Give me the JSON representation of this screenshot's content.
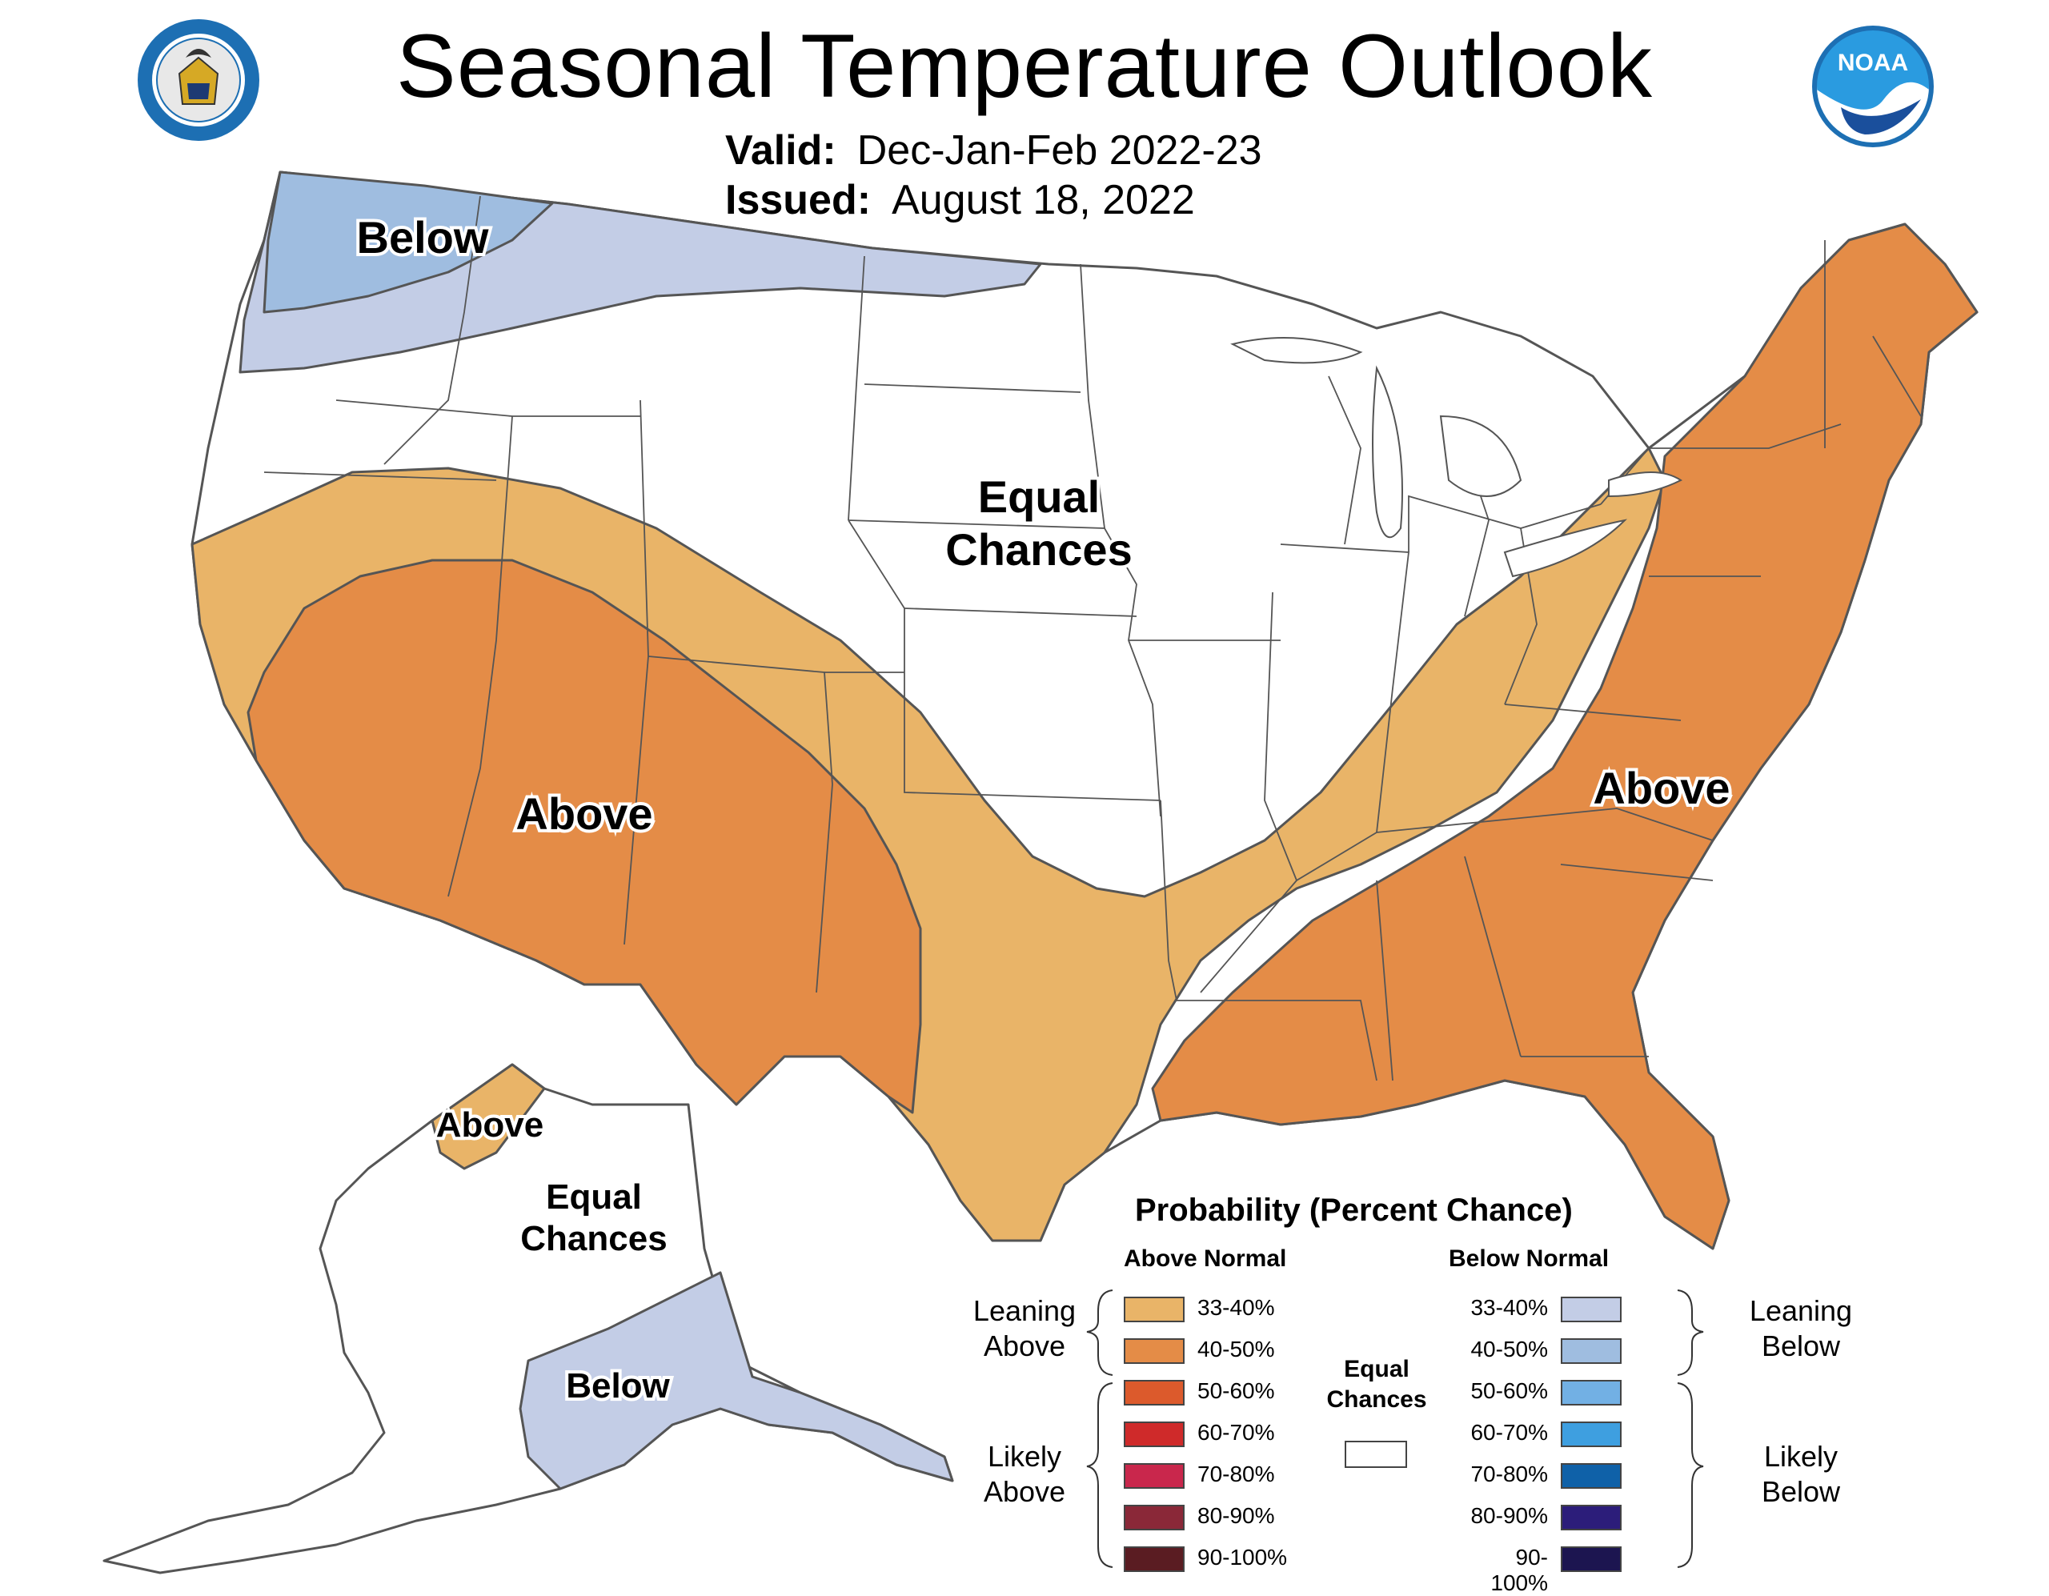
{
  "header": {
    "title": "Seasonal Temperature Outlook",
    "valid_label": "Valid:",
    "valid_value": "Dec-Jan-Feb 2022-23",
    "issued_label": "Issued:",
    "issued_value": "August 18, 2022",
    "doc_seal_icon": "department-of-commerce-seal-icon",
    "noaa_logo_icon": "noaa-logo-icon",
    "noaa_logo_text": "NOAA",
    "doc_seal_text": "DEPARTMENT OF COMMERCE · UNITED STATES OF AMERICA"
  },
  "map": {
    "regions": [
      {
        "label": "Below",
        "category": "below",
        "probability": "40-50%",
        "area": "Pacific Northwest"
      },
      {
        "label": "Equal Chances",
        "category": "equal",
        "area": "Central/North"
      },
      {
        "label": "Above",
        "category": "above",
        "probability": "40-50%",
        "area": "Southwest"
      },
      {
        "label": "Above",
        "category": "above",
        "probability": "40-50%",
        "area": "East/Southeast"
      },
      {
        "label": "Above",
        "category": "above",
        "probability": "33-40%",
        "area": "Northern Alaska"
      },
      {
        "label": "Equal Chances",
        "category": "equal",
        "area": "Alaska interior"
      },
      {
        "label": "Below",
        "category": "below",
        "probability": "33-40%",
        "area": "Southern Alaska"
      }
    ],
    "labels": {
      "pnw_below": "Below",
      "center_equal_1": "Equal",
      "center_equal_2": "Chances",
      "sw_above": "Above",
      "east_above": "Above",
      "ak_above": "Above",
      "ak_equal_1": "Equal",
      "ak_equal_2": "Chances",
      "ak_below": "Below"
    }
  },
  "legend": {
    "title": "Probability (Percent Chance)",
    "above_header": "Above Normal",
    "below_header": "Below Normal",
    "equal_label_1": "Equal",
    "equal_label_2": "Chances",
    "leaning_above_1": "Leaning",
    "leaning_above_2": "Above",
    "likely_above_1": "Likely",
    "likely_above_2": "Above",
    "leaning_below_1": "Leaning",
    "leaning_below_2": "Below",
    "likely_below_1": "Likely",
    "likely_below_2": "Below",
    "above": [
      {
        "range": "33-40%",
        "color": "#e9b468"
      },
      {
        "range": "40-50%",
        "color": "#e48c47"
      },
      {
        "range": "50-60%",
        "color": "#dc5a2c"
      },
      {
        "range": "60-70%",
        "color": "#cf2a2a"
      },
      {
        "range": "70-80%",
        "color": "#c9274c"
      },
      {
        "range": "80-90%",
        "color": "#8a2838"
      },
      {
        "range": "90-100%",
        "color": "#5a1c22"
      }
    ],
    "below": [
      {
        "range": "33-40%",
        "color": "#c3cde6"
      },
      {
        "range": "40-50%",
        "color": "#9fbde0"
      },
      {
        "range": "50-60%",
        "color": "#72b0e4"
      },
      {
        "range": "60-70%",
        "color": "#3e9fe0"
      },
      {
        "range": "70-80%",
        "color": "#0f61a8"
      },
      {
        "range": "80-90%",
        "color": "#2c1d7a"
      },
      {
        "range": "90-100%",
        "color": "#1c1550"
      }
    ]
  }
}
